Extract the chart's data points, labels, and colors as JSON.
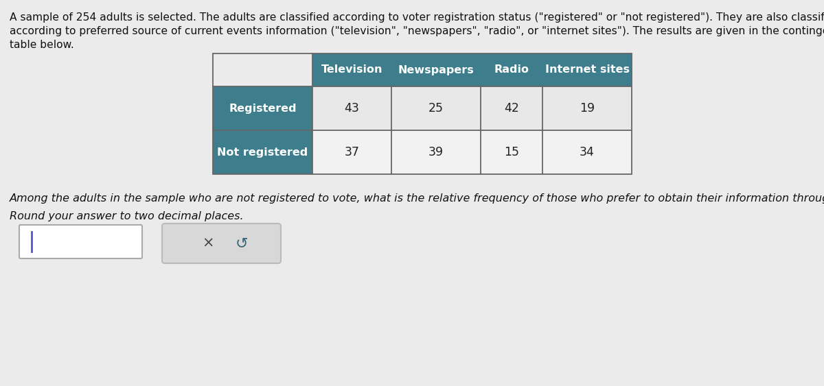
{
  "bg_color": "#ebebeb",
  "intro_text_lines": [
    "A sample of 254 adults is selected. The adults are classified according to voter registration status (\"registered\" or \"not registered\"). They are also classified",
    "according to preferred source of current events information (\"television\", \"newspapers\", \"radio\", or \"internet sites\"). The results are given in the contingency",
    "table below."
  ],
  "col_headers": [
    "Television",
    "Newspapers",
    "Radio",
    "Internet sites"
  ],
  "row_headers": [
    "Registered",
    "Not registered"
  ],
  "data": [
    [
      43,
      25,
      42,
      19
    ],
    [
      37,
      39,
      15,
      34
    ]
  ],
  "header_bg": "#3d7d8c",
  "header_text_color": "#ffffff",
  "row_header_bg": "#3d7d8c",
  "row_header_text_color": "#ffffff",
  "cell_bg_row0": "#e8e8e8",
  "cell_bg_row1": "#f2f2f2",
  "table_border_color": "#666666",
  "question_text": "Among the adults in the sample who are not registered to vote, what is the relative frequency of those who prefer to obtain their information through television?",
  "round_text": "Round your answer to two decimal places.",
  "font_size_intro": 11.2,
  "font_size_header": 11.5,
  "font_size_row_label": 11.5,
  "font_size_data": 12.5,
  "font_size_question": 11.5
}
